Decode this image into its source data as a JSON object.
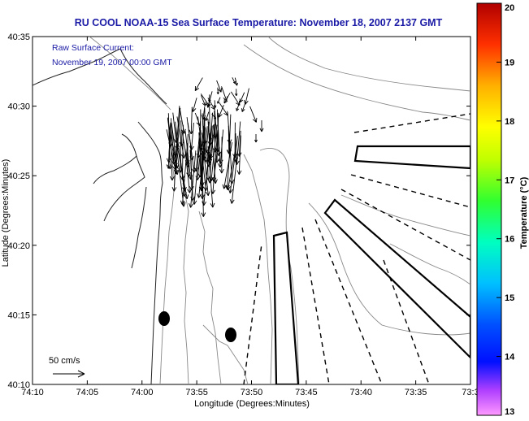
{
  "title": "RU COOL  NOAA-15  Sea Surface Temperature:  November 18, 2007 2137 GMT",
  "annotation": {
    "line1": "Raw Surface Current:",
    "line2": "November 19, 2007 00:00 GMT"
  },
  "axes": {
    "xlabel": "Longitude (Degrees:Minutes)",
    "ylabel": "Latitude (Degrees:Minutes)",
    "xticks": [
      "74:10",
      "74:05",
      "74:00",
      "73:55",
      "73:50",
      "73:45",
      "73:40",
      "73:35",
      "73:3"
    ],
    "yticks": [
      "40:35",
      "40:30",
      "40:25",
      "40:20",
      "40:15",
      "40:10"
    ]
  },
  "scale_label": "50 cm/s",
  "colorbar": {
    "label": "Temperature (°C)",
    "min": 13,
    "max": 20,
    "ticks": [
      "20",
      "19",
      "18",
      "17",
      "16",
      "15",
      "14",
      "13"
    ]
  },
  "chart_data": {
    "type": "map",
    "x_range": [
      "74:10",
      "73:3"
    ],
    "y_range": [
      "40:10",
      "40:35"
    ],
    "colorbar_range": [
      13,
      20
    ],
    "colorbar_unit": "°C",
    "features": [
      "coastline",
      "bathymetry contours",
      "surface current vectors",
      "survey boxes",
      "dashed transects",
      "black dots"
    ]
  }
}
